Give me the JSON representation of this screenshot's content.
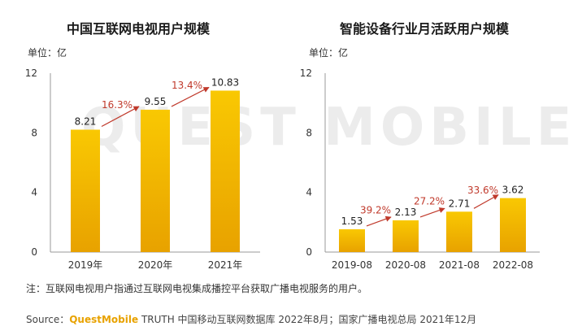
{
  "watermark": "QUEST MOBILE",
  "charts": [
    {
      "title": "中国互联网电视用户规模",
      "unit": "单位：亿",
      "chart_data": {
        "type": "bar",
        "categories": [
          "2019年",
          "2020年",
          "2021年"
        ],
        "values": [
          8.21,
          9.55,
          10.83
        ],
        "value_labels": [
          "8.21",
          "9.55",
          "10.83"
        ],
        "growth_labels": [
          "16.3%",
          "13.4%"
        ],
        "ylim": [
          0,
          12
        ],
        "yticks": [
          0,
          4,
          8,
          12
        ]
      }
    },
    {
      "title": "智能设备行业月活跃用户规模",
      "unit": "单位：亿",
      "chart_data": {
        "type": "bar",
        "categories": [
          "2019-08",
          "2020-08",
          "2021-08",
          "2022-08"
        ],
        "values": [
          1.53,
          2.13,
          2.71,
          3.62
        ],
        "value_labels": [
          "1.53",
          "2.13",
          "2.71",
          "3.62"
        ],
        "growth_labels": [
          "39.2%",
          "27.2%",
          "33.6%"
        ],
        "ylim": [
          0,
          12
        ],
        "yticks": [
          0,
          4,
          8,
          12
        ]
      }
    }
  ],
  "colors": {
    "bar": "#f9c802",
    "bar_edge": "#e8a200",
    "growth": "#c0392b",
    "axis": "#999999"
  },
  "note": "注：互联网电视用户指通过互联网电视集成播控平台获取广播电视服务的用户。",
  "source": {
    "prefix": "Source：",
    "brand": "QuestMobile",
    "text": " TRUTH 中国移动互联网数据库 2022年8月；国家广播电视总局 2021年12月"
  }
}
